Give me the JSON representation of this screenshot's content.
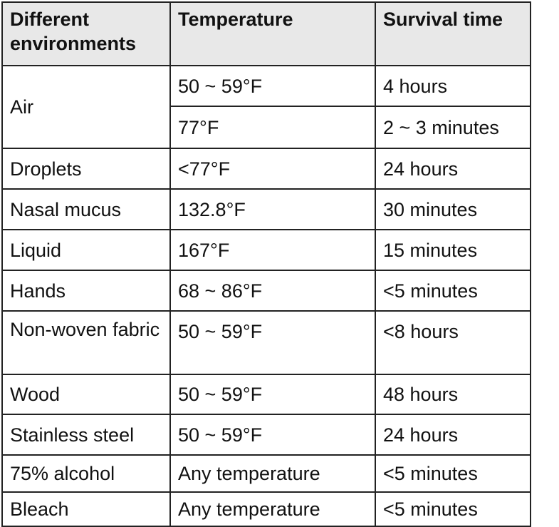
{
  "table": {
    "headers": [
      "Different environments",
      "Temperature",
      "Survival time"
    ],
    "air": {
      "environment": "Air",
      "rows": [
        {
          "temperature": "50 ~ 59°F",
          "survival": "4 hours"
        },
        {
          "temperature": "77°F",
          "survival": "2 ~ 3 minutes"
        }
      ]
    },
    "rows": [
      {
        "environment": "Droplets",
        "temperature": "<77°F",
        "survival": "24 hours"
      },
      {
        "environment": "Nasal mucus",
        "temperature": "132.8°F",
        "survival": "30 minutes"
      },
      {
        "environment": "Liquid",
        "temperature": "167°F",
        "survival": "15 minutes"
      },
      {
        "environment": "Hands",
        "temperature": "68 ~ 86°F",
        "survival": "<5 minutes"
      },
      {
        "environment": "Non-woven fabric",
        "temperature": "50 ~ 59°F",
        "survival": "<8 hours"
      },
      {
        "environment": "Wood",
        "temperature": "50 ~ 59°F",
        "survival": "48 hours"
      },
      {
        "environment": "Stainless steel",
        "temperature": "50 ~ 59°F",
        "survival": "24 hours"
      },
      {
        "environment": "75% alcohol",
        "temperature": "Any temperature",
        "survival": "<5 minutes"
      },
      {
        "environment": "Bleach",
        "temperature": "Any temperature",
        "survival": "<5 minutes"
      }
    ]
  }
}
